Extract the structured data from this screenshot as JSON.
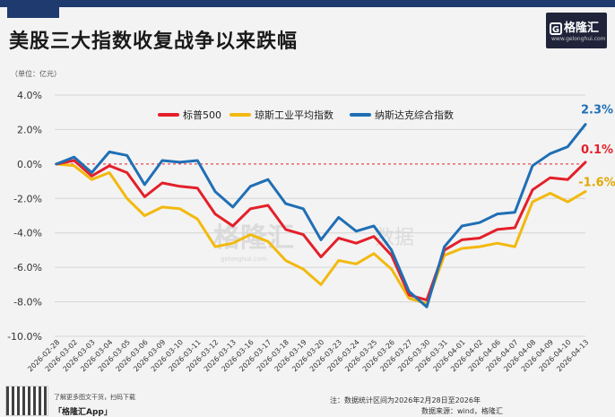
{
  "header": {
    "title": "美股三大指数收复战争以来跌幅",
    "unit": "（单位：亿元）"
  },
  "logo": {
    "icon": "logo-g-icon",
    "glyph": "G",
    "name": "格隆汇",
    "url": "www.gelonghui.com"
  },
  "watermark": {
    "text": "格隆汇",
    "url": "gelonghui.com",
    "suffix": "数据"
  },
  "footer": {
    "qr_caption": "了解更多图文干货，扫码下载",
    "brand": "「格隆汇App」",
    "note": "注：数据统计区间为2026年2月28日至2026年",
    "source": "数据来源：wind，格隆汇"
  },
  "colors": {
    "sp500": "#e3202a",
    "dow": "#f2b90f",
    "nasdaq": "#1f6fb5",
    "zero_line": "#e3202a",
    "grid": "#d4d4d4",
    "axis_text": "#333333",
    "label_blue": "#1f6fb5",
    "label_red": "#e3202a",
    "label_gold": "#e0a800"
  },
  "chart_data": {
    "type": "line",
    "title": "美股三大指数收复战争以来跌幅",
    "xlabel": "",
    "ylabel": "",
    "ylim": [
      -10,
      4
    ],
    "yticks": [
      4,
      2,
      0,
      -2,
      -4,
      -6,
      -8,
      -10
    ],
    "ytick_labels": [
      "4.0%",
      "2.0%",
      "0.0%",
      "-2.0%",
      "-4.0%",
      "-6.0%",
      "-8.0%",
      "-10.0%"
    ],
    "grid": true,
    "legend_position": "top-center",
    "categories": [
      "2026-02-28",
      "2026-03-02",
      "2026-03-03",
      "2026-03-04",
      "2026-03-05",
      "2026-03-06",
      "2026-03-09",
      "2026-03-10",
      "2026-03-11",
      "2026-03-12",
      "2026-03-13",
      "2026-03-16",
      "2026-03-17",
      "2026-03-18",
      "2026-03-19",
      "2026-03-20",
      "2026-03-23",
      "2026-03-24",
      "2026-03-25",
      "2026-03-26",
      "2026-03-27",
      "2026-03-30",
      "2026-03-31",
      "2026-04-01",
      "2026-04-02",
      "2026-04-06",
      "2026-04-07",
      "2026-04-08",
      "2026-04-09",
      "2026-04-10",
      "2026-04-13"
    ],
    "series": [
      {
        "name": "标普500",
        "key": "sp500",
        "values": [
          0.0,
          0.2,
          -0.7,
          -0.1,
          -0.5,
          -1.9,
          -1.1,
          -1.3,
          -1.4,
          -2.9,
          -3.6,
          -2.6,
          -2.4,
          -3.8,
          -4.1,
          -5.4,
          -4.3,
          -4.6,
          -4.2,
          -5.3,
          -7.6,
          -7.9,
          -5.0,
          -4.4,
          -4.3,
          -3.8,
          -3.7,
          -1.5,
          -0.8,
          -0.9,
          0.1
        ],
        "end_label": "0.1%"
      },
      {
        "name": "琼斯工业平均指数",
        "key": "dow",
        "values": [
          0.0,
          -0.1,
          -0.9,
          -0.5,
          -2.0,
          -3.0,
          -2.5,
          -2.6,
          -3.2,
          -4.8,
          -4.6,
          -4.1,
          -4.5,
          -5.6,
          -6.1,
          -7.0,
          -5.6,
          -5.8,
          -5.2,
          -6.1,
          -7.8,
          -8.1,
          -5.3,
          -4.9,
          -4.8,
          -4.6,
          -4.8,
          -2.2,
          -1.7,
          -2.2,
          -1.6
        ],
        "end_label": "-1.6%"
      },
      {
        "name": "纳斯达克综合指数",
        "key": "nasdaq",
        "values": [
          0.0,
          0.4,
          -0.5,
          0.7,
          0.5,
          -1.2,
          0.2,
          0.1,
          0.2,
          -1.6,
          -2.5,
          -1.3,
          -0.9,
          -2.3,
          -2.6,
          -4.4,
          -3.1,
          -3.9,
          -3.6,
          -5.0,
          -7.4,
          -8.3,
          -4.8,
          -3.6,
          -3.4,
          -2.9,
          -2.8,
          -0.1,
          0.6,
          1.0,
          2.3
        ],
        "end_label": "2.3%"
      }
    ]
  }
}
